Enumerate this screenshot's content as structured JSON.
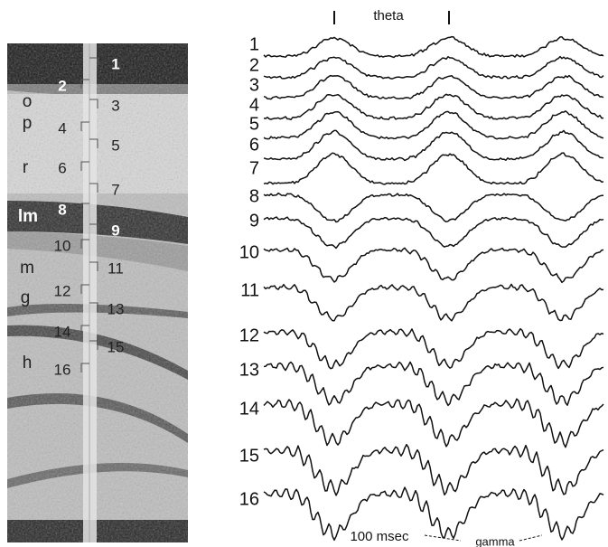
{
  "figure": {
    "theta_label": "theta",
    "scale_label": "100 msec",
    "gamma_label": "gamma"
  },
  "histology": {
    "layers": [
      "o",
      "p",
      "r",
      "lm",
      "m",
      "g",
      "h"
    ],
    "sites": [
      "1",
      "2",
      "3",
      "4",
      "5",
      "6",
      "7",
      "8",
      "9",
      "10",
      "11",
      "12",
      "13",
      "14",
      "15",
      "16"
    ]
  },
  "traces": {
    "labels": [
      "1",
      "2",
      "3",
      "4",
      "5",
      "6",
      "7",
      "8",
      "9",
      "10",
      "11",
      "12",
      "13",
      "14",
      "15",
      "16"
    ]
  }
}
